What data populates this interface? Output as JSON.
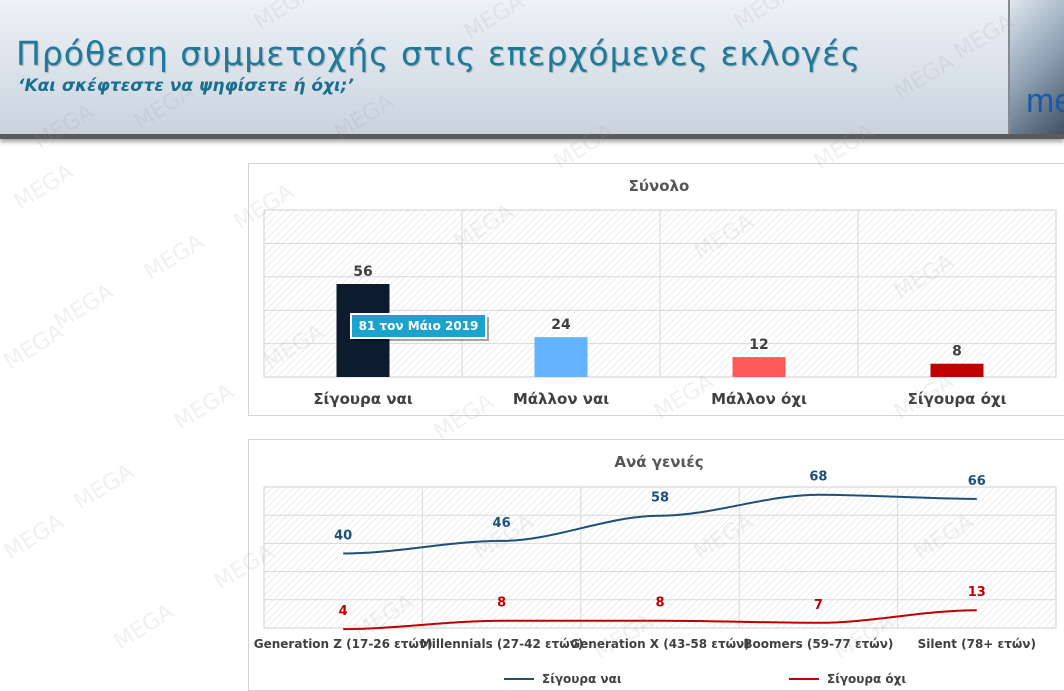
{
  "header": {
    "title": "Πρόθεση συμμετοχής στις επερχόμενες εκλογές",
    "subtitle": "‘Και σκέφτεστε να ψηφίσετε ή όχι;’",
    "logo_text": "me"
  },
  "watermark_text": "MEGA",
  "colors": {
    "sure_yes": "#0d1b2e",
    "likely_yes": "#63b3ff",
    "likely_no": "#ff5a5a",
    "sure_no": "#c00000",
    "line_yes": "#1f4e79",
    "line_no": "#c00000",
    "callout_bg": "#1aa3cc"
  },
  "chart_data": [
    {
      "type": "bar",
      "title": "Σύνολο",
      "categories": [
        "Σίγουρα ναι",
        "Μάλλον ναι",
        "Μάλλον όχι",
        "Σίγουρα όχι"
      ],
      "values": [
        56,
        24,
        12,
        8
      ],
      "ylim": [
        0,
        100
      ],
      "grid": true,
      "annotation": "81 τον Μάιο 2019"
    },
    {
      "type": "line",
      "title": "Ανά γενιές",
      "categories": [
        "Generation Z (17-26 ετών)",
        "Millennials (27-42 ετών)",
        "Generation X (43-58 ετών)",
        "Boomers (59-77 ετών)",
        "Silent (78+ ετών)"
      ],
      "series": [
        {
          "name": "Σίγουρα ναι",
          "values": [
            40,
            46,
            58,
            68,
            66
          ]
        },
        {
          "name": "Σίγουρα όχι",
          "values": [
            4,
            8,
            8,
            7,
            13
          ]
        }
      ],
      "ylim": [
        0,
        80
      ],
      "grid": true,
      "legend": "bottom"
    }
  ]
}
